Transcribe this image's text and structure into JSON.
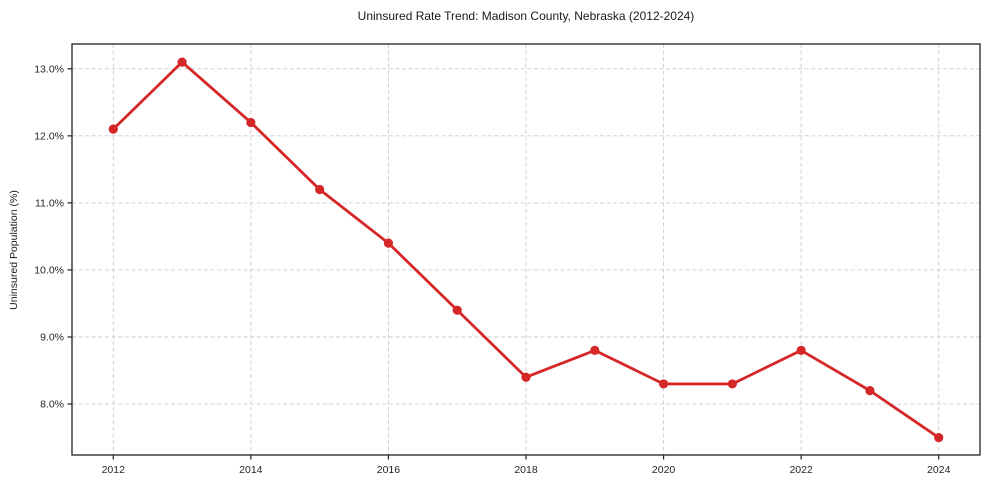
{
  "figure": {
    "title": "Uninsured Rate Trend: Madison County, Nebraska (2012-2024)",
    "y_axis_label": "Uninsured Population (%)"
  },
  "colors": {
    "line": "#d62728",
    "grid": "#cccccc",
    "spine": "#222222",
    "tick_text": "#262626",
    "background": "#ffffff"
  },
  "chart_data": {
    "type": "line",
    "title": "Uninsured Rate Trend: Madison County, Nebraska (2012-2024)",
    "xlabel": "",
    "ylabel": "Uninsured Population (%)",
    "x": [
      2012,
      2013,
      2014,
      2015,
      2016,
      2017,
      2018,
      2019,
      2020,
      2021,
      2022,
      2023,
      2024
    ],
    "values": [
      12.1,
      13.1,
      12.2,
      11.2,
      10.4,
      9.4,
      8.4,
      8.8,
      8.3,
      8.3,
      8.8,
      8.2,
      7.5
    ],
    "xticks": [
      2012,
      2014,
      2016,
      2018,
      2020,
      2022,
      2024
    ],
    "xtick_labels": [
      "2012",
      "2014",
      "2016",
      "2018",
      "2020",
      "2022",
      "2024"
    ],
    "yticks": [
      8,
      9,
      10,
      11,
      12,
      13
    ],
    "ytick_labels": [
      "8.0%",
      "9.0%",
      "10.0%",
      "11.0%",
      "12.0%",
      "13.0%"
    ],
    "xlim": [
      2011.4,
      2024.6
    ],
    "ylim": [
      7.24,
      13.37
    ],
    "grid": true,
    "grid_style": "dashed",
    "legend_position": "none",
    "line_color": "#d62728",
    "marker": "circle"
  }
}
